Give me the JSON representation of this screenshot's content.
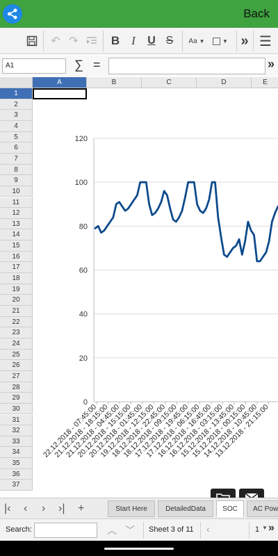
{
  "topbar": {
    "back_label": "Back"
  },
  "toolbar": {
    "items": [
      "save-icon",
      "undo-icon",
      "redo-icon",
      "indent-icon",
      "bold",
      "italic",
      "underline",
      "strikethrough",
      "font-size",
      "border",
      "more",
      "menu"
    ],
    "bold": "B",
    "italic": "I",
    "underline": "U",
    "strike": "S",
    "font_size": "Aa",
    "more": "»",
    "menu": "☰"
  },
  "formula_bar": {
    "cell_ref": "A1",
    "sum_symbol": "∑",
    "eq_symbol": "=",
    "expand": "»"
  },
  "grid": {
    "columns": [
      "A",
      "B",
      "C",
      "D",
      "E"
    ],
    "rows": [
      "1",
      "2",
      "3",
      "4",
      "5",
      "6",
      "7",
      "8",
      "9",
      "10",
      "11",
      "12",
      "13",
      "14",
      "15",
      "16",
      "17",
      "18",
      "19",
      "20",
      "21",
      "22",
      "23",
      "24",
      "25",
      "26",
      "27",
      "28",
      "29",
      "30",
      "31",
      "32",
      "33",
      "34",
      "35",
      "36",
      "37"
    ],
    "active_column": "A",
    "active_row": "1"
  },
  "chart_data": {
    "type": "line",
    "title": "",
    "xlabel": "",
    "ylabel": "",
    "ylim": [
      0,
      120
    ],
    "yticks": [
      "0",
      "20",
      "40",
      "60",
      "80",
      "100",
      "120"
    ],
    "grid": true,
    "x_tick_labels": [
      "22.12.2018 - 07:45:00",
      "21.12.2018 - 18:15:00",
      "21.12.2018 - 04:45:00",
      "20.12.2018 - 15:15:00",
      "20.12.2018 - 01:45:00",
      "19.12.2018 - 12:15:00",
      "18.12.2018 - 22:45:00",
      "18.12.2018 - 09:15:00",
      "17.12.2018 - 19:45:00",
      "17.12.2018 - 06:15:00",
      "16.12.2018 - 16:45:00",
      "16.12.2018 - 03:15:00",
      "15.12.2018 - 13:45:00",
      "15.12.2018 - 00:15:00",
      "14.12.2018 - 10:45:00",
      "13.12.2018 - 21:15:00"
    ],
    "series": [
      {
        "color": "#0d4a8c",
        "values": [
          79,
          80,
          77,
          78,
          80,
          82,
          84,
          90,
          91,
          89,
          87,
          88,
          90,
          92,
          94,
          100,
          100,
          100,
          90,
          85,
          86,
          88,
          91,
          96,
          94,
          88,
          83,
          82,
          84,
          87,
          93,
          100,
          100,
          100,
          90,
          87,
          86,
          88,
          92,
          100,
          100,
          84,
          75,
          67,
          66,
          68,
          70,
          71,
          74,
          67,
          73,
          82,
          78,
          76,
          64,
          64,
          66,
          68,
          73,
          82,
          86,
          89
        ]
      }
    ],
    "line_color": "#0d4a8c"
  },
  "sheet_tabs": {
    "tabs": [
      "Start Here",
      "DetailedData",
      "SOC",
      "AC Pow"
    ],
    "active": "SOC",
    "nav": [
      "|‹",
      "‹",
      "›",
      "›|",
      "+"
    ]
  },
  "search": {
    "label": "Search:",
    "value": "",
    "sheet_info": "Sheet 3 of 11",
    "zoom": "1"
  }
}
